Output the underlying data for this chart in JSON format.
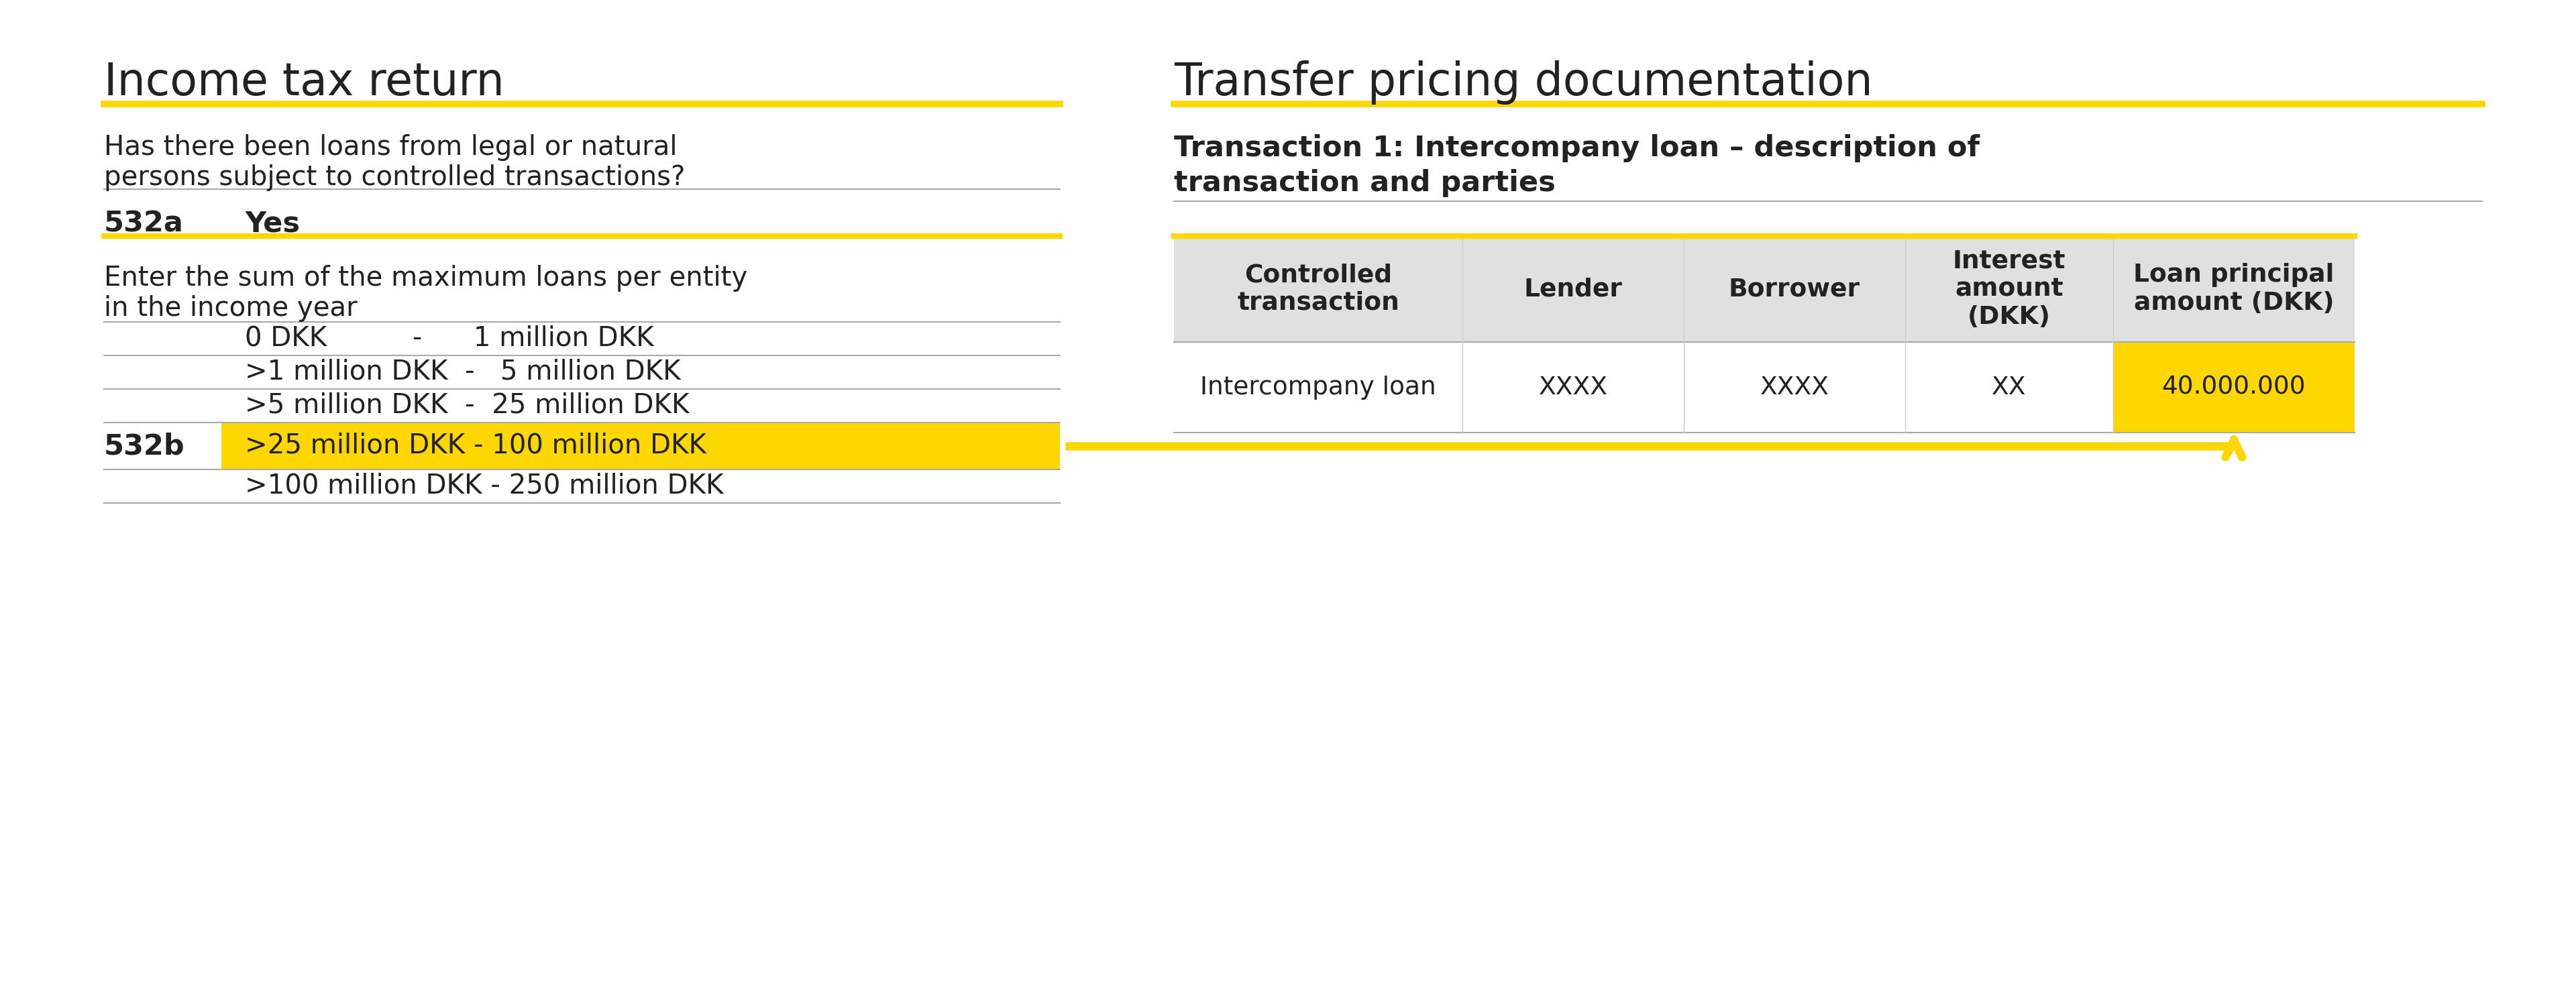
{
  "bg_color": "#ffffff",
  "yellow": "#FFD700",
  "gray_line": "#aaaaaa",
  "dark_text": "#222222",
  "table_header_bg": "#e0e0e0",
  "table_value_yellow": "#FFD700",
  "left_title": "Income tax return",
  "right_title": "Transfer pricing documentation",
  "left_subtitle1": "Has there been loans from legal or natural",
  "left_subtitle2": "persons subject to controlled transactions?",
  "field_532a_label": "532a",
  "field_532a_value": "Yes",
  "enter_text1": "Enter the sum of the maximum loans per entity",
  "enter_text2": "in the income year",
  "ranges": [
    {
      "label": "",
      "text": "0 DKK          -      1 million DKK",
      "highlight": false
    },
    {
      "label": "",
      "text": ">1 million DKK  -   5 million DKK",
      "highlight": false
    },
    {
      "label": "",
      "text": ">5 million DKK  -  25 million DKK",
      "highlight": false
    },
    {
      "label": "532b",
      "text": ">25 million DKK - 100 million DKK",
      "highlight": true
    },
    {
      "label": "",
      "text": ">100 million DKK - 250 million DKK",
      "highlight": false
    }
  ],
  "tp_subtitle_line1": "Transaction 1: Intercompany loan – description of",
  "tp_subtitle_line2": "transaction and parties",
  "table_headers": [
    "Controlled\ntransaction",
    "Lender",
    "Borrower",
    "Interest\namount\n(DKK)",
    "Loan principal\namount (DKK)"
  ],
  "table_row": [
    "Intercompany loan",
    "XXXX",
    "XXXX",
    "XX",
    "40.000.000"
  ]
}
